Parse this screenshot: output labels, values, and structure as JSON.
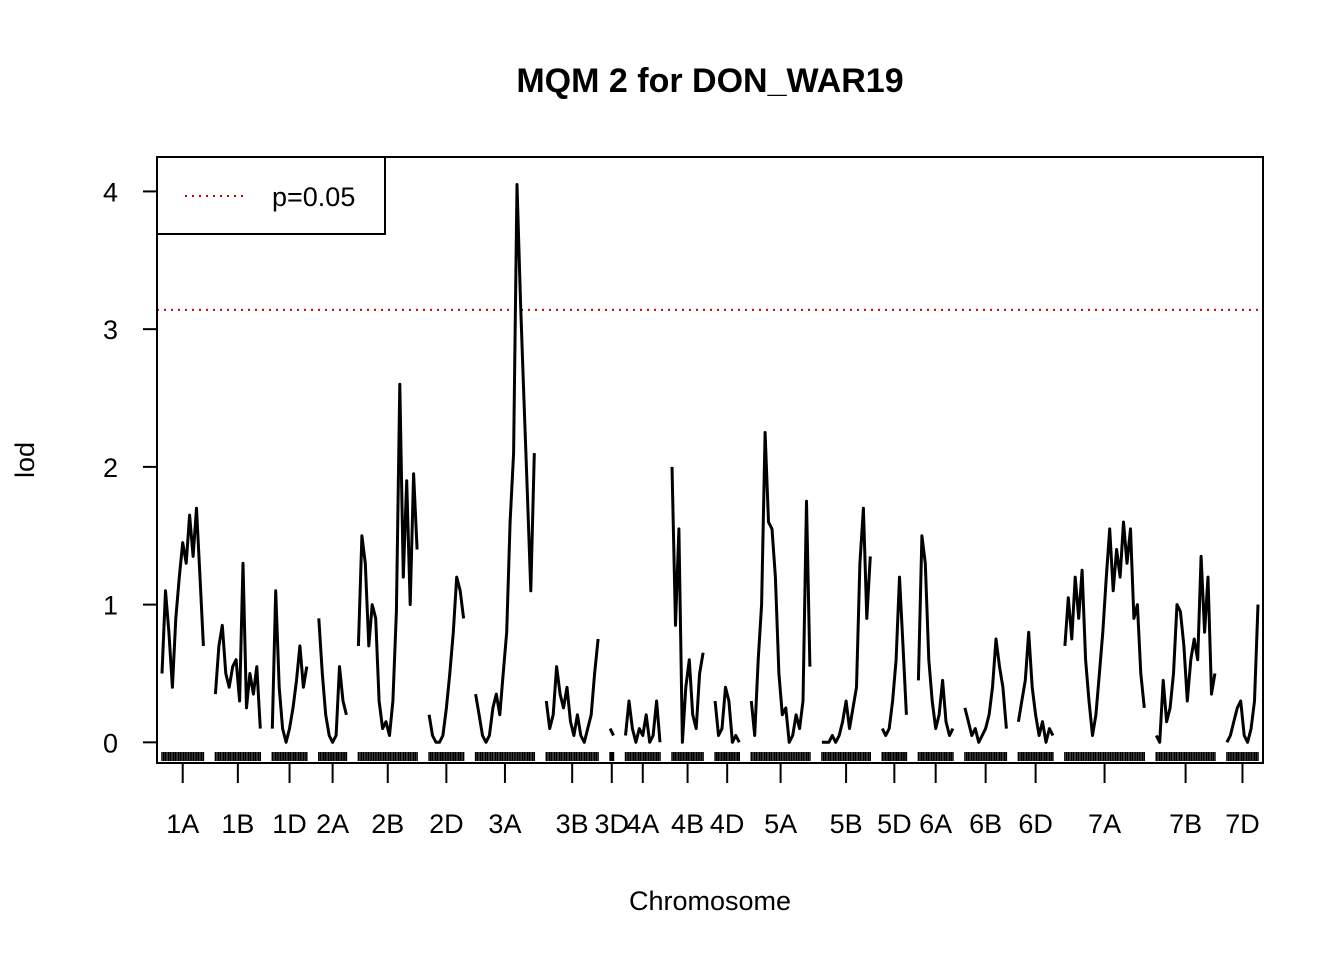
{
  "chart_data": {
    "type": "line",
    "title": "MQM 2 for DON_WAR19",
    "xlabel": "Chromosome",
    "ylabel": "lod",
    "ylim": [
      -0.15,
      4.25
    ],
    "yticks": [
      0,
      1,
      2,
      3,
      4
    ],
    "threshold": {
      "label": "p=0.05",
      "value": 3.14,
      "color": "#cc0000"
    },
    "legend_position": "top-left",
    "line_color": "#000000",
    "chromosomes": [
      {
        "name": "1A",
        "points": [
          0.5,
          1.1,
          0.8,
          0.4,
          0.9,
          1.2,
          1.45,
          1.3,
          1.65,
          1.35,
          1.7,
          1.2,
          0.7
        ]
      },
      {
        "name": "1B",
        "points": [
          0.35,
          0.7,
          0.85,
          0.5,
          0.4,
          0.55,
          0.6,
          0.3,
          1.3,
          0.25,
          0.5,
          0.35,
          0.55,
          0.1
        ]
      },
      {
        "name": "1D",
        "points": [
          0.1,
          1.1,
          0.4,
          0.1,
          0.0,
          0.1,
          0.25,
          0.45,
          0.7,
          0.4,
          0.55
        ]
      },
      {
        "name": "2A",
        "points": [
          0.9,
          0.5,
          0.2,
          0.05,
          0.0,
          0.05,
          0.55,
          0.3,
          0.2
        ]
      },
      {
        "name": "2B",
        "points": [
          0.7,
          1.5,
          1.3,
          0.7,
          1.0,
          0.9,
          0.3,
          0.1,
          0.15,
          0.05,
          0.3,
          0.95,
          2.6,
          1.2,
          1.9,
          1.0,
          1.95,
          1.4
        ]
      },
      {
        "name": "2D",
        "points": [
          0.2,
          0.05,
          0.0,
          0.0,
          0.05,
          0.25,
          0.5,
          0.8,
          1.2,
          1.1,
          0.9
        ]
      },
      {
        "name": "3A",
        "points": [
          0.35,
          0.2,
          0.05,
          0.0,
          0.05,
          0.25,
          0.35,
          0.2,
          0.5,
          0.8,
          1.6,
          2.1,
          4.05,
          3.2,
          2.5,
          1.8,
          1.1,
          2.1
        ]
      },
      {
        "name": "3B",
        "points": [
          0.3,
          0.1,
          0.2,
          0.55,
          0.35,
          0.25,
          0.4,
          0.15,
          0.05,
          0.2,
          0.05,
          0.0,
          0.1,
          0.2,
          0.5,
          0.75
        ]
      },
      {
        "name": "3D",
        "points": [
          0.1,
          0.05
        ]
      },
      {
        "name": "4A",
        "points": [
          0.05,
          0.3,
          0.1,
          0.0,
          0.1,
          0.05,
          0.2,
          0.0,
          0.05,
          0.3,
          0.0
        ]
      },
      {
        "name": "4B",
        "points": [
          2.0,
          0.85,
          1.55,
          0.0,
          0.4,
          0.6,
          0.2,
          0.1,
          0.5,
          0.65
        ]
      },
      {
        "name": "4D",
        "points": [
          0.3,
          0.05,
          0.1,
          0.4,
          0.3,
          0.0,
          0.05,
          0.0
        ]
      },
      {
        "name": "5A",
        "points": [
          0.3,
          0.05,
          0.6,
          1.0,
          2.25,
          1.6,
          1.55,
          1.2,
          0.5,
          0.2,
          0.25,
          0.0,
          0.05,
          0.2,
          0.1,
          0.3,
          1.75,
          0.55
        ]
      },
      {
        "name": "5B",
        "points": [
          0.0,
          0.0,
          0.0,
          0.05,
          0.0,
          0.05,
          0.15,
          0.3,
          0.1,
          0.25,
          0.4,
          1.3,
          1.7,
          0.9,
          1.35
        ]
      },
      {
        "name": "5D",
        "points": [
          0.1,
          0.05,
          0.1,
          0.3,
          0.6,
          1.2,
          0.7,
          0.2
        ]
      },
      {
        "name": "6A",
        "points": [
          0.45,
          1.5,
          1.3,
          0.6,
          0.3,
          0.1,
          0.2,
          0.45,
          0.15,
          0.05,
          0.1
        ]
      },
      {
        "name": "6B",
        "points": [
          0.25,
          0.15,
          0.05,
          0.1,
          0.0,
          0.05,
          0.1,
          0.2,
          0.4,
          0.75,
          0.55,
          0.4,
          0.1
        ]
      },
      {
        "name": "6D",
        "points": [
          0.15,
          0.3,
          0.45,
          0.8,
          0.4,
          0.2,
          0.05,
          0.15,
          0.0,
          0.1,
          0.05
        ]
      },
      {
        "name": "7A",
        "points": [
          0.7,
          1.05,
          0.75,
          1.2,
          0.9,
          1.25,
          0.6,
          0.3,
          0.05,
          0.2,
          0.5,
          0.8,
          1.2,
          1.55,
          1.1,
          1.4,
          1.2,
          1.6,
          1.3,
          1.55,
          0.9,
          1.0,
          0.5,
          0.25
        ]
      },
      {
        "name": "7B",
        "points": [
          0.05,
          0.0,
          0.45,
          0.15,
          0.25,
          0.5,
          1.0,
          0.95,
          0.7,
          0.3,
          0.6,
          0.75,
          0.6,
          1.35,
          0.8,
          1.2,
          0.35,
          0.5
        ]
      },
      {
        "name": "7D",
        "points": [
          0.0,
          0.05,
          0.15,
          0.25,
          0.3,
          0.05,
          0.0,
          0.1,
          0.3,
          1.0
        ]
      }
    ]
  }
}
